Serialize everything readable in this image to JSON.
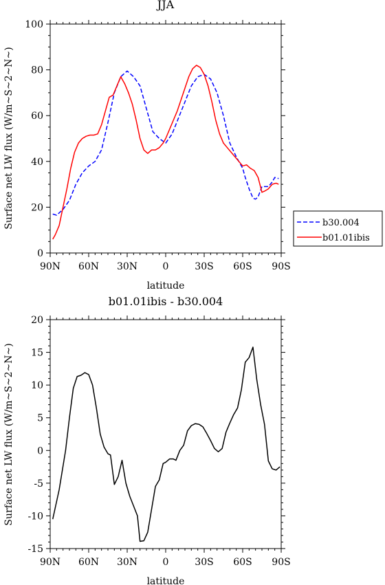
{
  "chart_data": [
    {
      "type": "line",
      "title": "JJA",
      "xlabel": "latitude",
      "ylabel": "Surface net LW flux (W/m~S~2~N~)",
      "xlim": [
        90,
        -90
      ],
      "ylim": [
        0,
        100
      ],
      "xticks": [
        90,
        60,
        30,
        0,
        -30,
        -60,
        -90
      ],
      "xtick_labels": [
        "90N",
        "60N",
        "30N",
        "0",
        "30S",
        "60S",
        "90S"
      ],
      "yticks": [
        0,
        20,
        40,
        60,
        80,
        100
      ],
      "ytick_labels": [
        "0",
        "20",
        "40",
        "60",
        "80",
        "100"
      ],
      "legend_position": "right",
      "series": [
        {
          "name": "b30.004",
          "color": "#0000ff",
          "dash": "dashed",
          "x": [
            88,
            85,
            80,
            75,
            70,
            65,
            60,
            55,
            50,
            45,
            40,
            35,
            30,
            25,
            20,
            15,
            10,
            5,
            0,
            -5,
            -10,
            -15,
            -20,
            -25,
            -30,
            -35,
            -40,
            -45,
            -50,
            -55,
            -60,
            -62,
            -65,
            -68,
            -70,
            -72,
            -75,
            -78,
            -80,
            -83,
            -85,
            -88
          ],
          "y": [
            17,
            16.5,
            19,
            23,
            30,
            35,
            38,
            40,
            45,
            57,
            70,
            77,
            79.5,
            77,
            73,
            63,
            53,
            50,
            48,
            52,
            59,
            66,
            73,
            77,
            78,
            76,
            70,
            60,
            48,
            42,
            37,
            33,
            28,
            24,
            23.5,
            24.5,
            29,
            29,
            29,
            31,
            33,
            32.5
          ]
        },
        {
          "name": "b01.01ibis",
          "color": "#ff0000",
          "dash": "solid",
          "x": [
            88,
            86,
            83,
            80,
            77,
            74,
            71,
            68,
            65,
            62,
            59,
            56,
            53,
            50,
            47,
            44,
            41,
            38,
            35,
            32,
            29,
            26,
            23,
            20,
            17,
            14,
            11,
            8,
            5,
            2,
            0,
            -3,
            -6,
            -9,
            -12,
            -15,
            -18,
            -21,
            -24,
            -27,
            -30,
            -33,
            -36,
            -39,
            -42,
            -45,
            -48,
            -51,
            -54,
            -57,
            -60,
            -63,
            -66,
            -69,
            -72,
            -75,
            -77,
            -80,
            -83,
            -86,
            -88
          ],
          "y": [
            6,
            8,
            12,
            20,
            28,
            37,
            44,
            48,
            50,
            51,
            51.5,
            51.5,
            52,
            56,
            62,
            68,
            69,
            73,
            77,
            74,
            70,
            65,
            58,
            50,
            45,
            43.5,
            45,
            45,
            46,
            48,
            50,
            54,
            58,
            62,
            67,
            72,
            77,
            80.5,
            82,
            81,
            78,
            73,
            66,
            58,
            52,
            48,
            46,
            44,
            42,
            40,
            38,
            38.5,
            37,
            36,
            33,
            26.5,
            27,
            28,
            30,
            30.5,
            30
          ]
        }
      ]
    },
    {
      "type": "line",
      "title": "b01.01ibis - b30.004",
      "xlabel": "latitude",
      "ylabel": "Surface net LW flux (W/m~S~2~N~)",
      "xlim": [
        90,
        -90
      ],
      "ylim": [
        -15,
        20
      ],
      "xticks": [
        90,
        60,
        30,
        0,
        -30,
        -60,
        -90
      ],
      "xtick_labels": [
        "90N",
        "60N",
        "30N",
        "0",
        "30S",
        "60S",
        "90S"
      ],
      "yticks": [
        -15,
        -10,
        -5,
        0,
        5,
        10,
        15,
        20
      ],
      "ytick_labels": [
        "-15",
        "-10",
        "-5",
        "0",
        "5",
        "10",
        "15",
        "20"
      ],
      "series": [
        {
          "color": "#000000",
          "dash": "solid",
          "x": [
            88,
            83,
            78,
            75,
            72,
            69,
            66,
            63,
            60,
            57,
            54,
            51,
            48,
            45,
            43,
            40,
            37,
            34,
            31,
            28,
            25,
            22,
            20,
            17,
            14,
            11,
            8,
            5,
            2,
            0,
            -3,
            -6,
            -8,
            -11,
            -14,
            -17,
            -20,
            -23,
            -26,
            -29,
            -32,
            -35,
            -38,
            -41,
            -44,
            -47,
            -50,
            -53,
            -56,
            -59,
            -62,
            -65,
            -68,
            -71,
            -74,
            -77,
            -80,
            -83,
            -86,
            -89
          ],
          "y": [
            -10.5,
            -6,
            0,
            5,
            9.5,
            11.3,
            11.5,
            11.9,
            11.6,
            10,
            6.5,
            2.5,
            0.5,
            -0.5,
            -0.7,
            -5.2,
            -4,
            -1.5,
            -5,
            -7,
            -8.5,
            -10,
            -13.9,
            -13.8,
            -12.5,
            -9,
            -5.5,
            -4.5,
            -2,
            -1.8,
            -1.3,
            -1.3,
            -1.5,
            0,
            0.8,
            3,
            3.8,
            4.1,
            4,
            3.6,
            2.6,
            1.5,
            0.3,
            -0.2,
            0.3,
            2.8,
            4.2,
            5.5,
            6.5,
            9.3,
            13.5,
            14.2,
            15.8,
            10.8,
            7,
            4,
            -1.6,
            -2.8,
            -3,
            -2.5
          ]
        }
      ]
    }
  ]
}
